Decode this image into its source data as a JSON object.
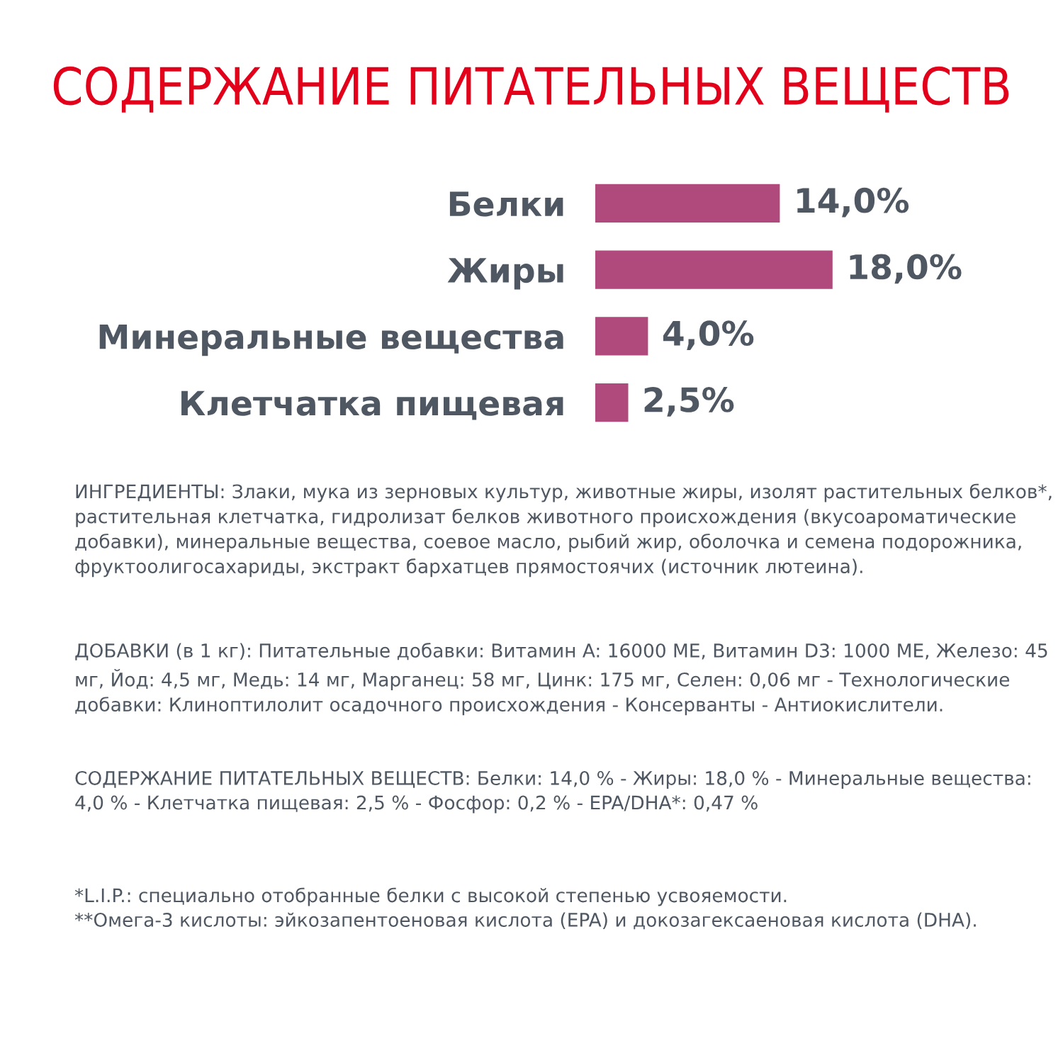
{
  "chart_data": {
    "type": "bar",
    "orientation": "horizontal",
    "title": "СОДЕРЖАНИЕ ПИТАТЕЛЬНЫХ ВЕЩЕСТВ",
    "categories": [
      "Белки",
      "Жиры",
      "Минеральные вещества",
      "Клетчатка пищевая"
    ],
    "values": [
      14.0,
      18.0,
      4.0,
      2.5
    ],
    "value_labels": [
      "14,0%",
      "18,0%",
      "4,0%",
      "2,5%"
    ],
    "color": "#b04a7c",
    "tick_labels": "y",
    "annotations": [
      "ИНГРЕДИЕНТЫ: Злаки, мука из зерновых культур, животные жиры, изолят растительных белков*, растительная клетчатка, гидролизат белков животного происхождения (вкусоароматические добавки), минеральные вещества, соевое масло, рыбий жир, оболочка и семена подорожника, фруктоолигосахариды, экстракт бархатцев прямостоячих (источник лютеина).",
      "ДОБАВКИ (в 1 кг): Питательные добавки: Витамин A: 16000 МЕ, Витамин D3: 1000 МЕ, Железо: 45 мг, Йод: 4,5 мг, Медь: 14 мг, Марганец: 58 мг, Цинк: 175 мг, Селен: 0,06 мг - Технологические добавки: Клиноптилолит осадочного происхождения - Консерванты - Антиокислители.",
      "СОДЕРЖАНИЕ ПИТАТЕЛЬНЫХ ВЕЩЕСТВ: Белки: 14,0 % - Жиры: 18,0 % - Минеральные вещества: 4,0 % - Клетчатка пищевая: 2,5 % - Фосфор: 0,2 % - EPA/DHA*: 0,47 %",
      "*L.I.P.: специально отобранные белки с высокой степенью усвояемости.\n**Омега-3 кислоты: эйкозапентоеновая кислота (EPA) и докозагексаеновая кислота (DHA)."
    ]
  }
}
